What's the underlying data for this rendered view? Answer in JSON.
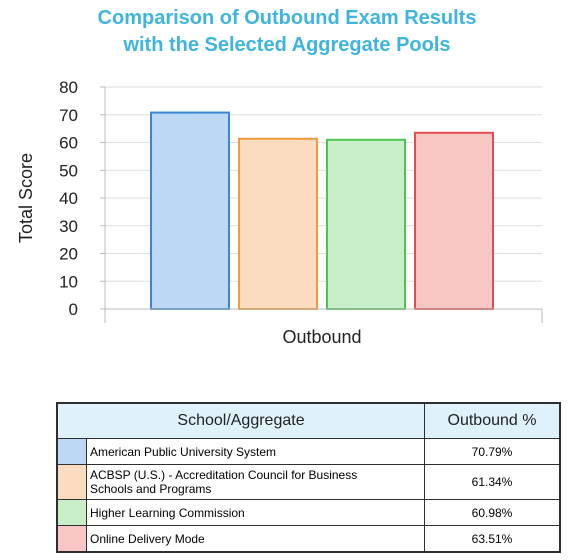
{
  "chart_data": {
    "type": "bar",
    "title_line1": "Comparison of Outbound Exam Results",
    "title_line2": "with the Selected Aggregate Pools",
    "ylabel": "Total Score",
    "xlabel": "Outbound",
    "ylim": [
      0,
      80
    ],
    "yticks": [
      "0",
      "10",
      "20",
      "30",
      "40",
      "50",
      "60",
      "70",
      "80"
    ],
    "grid": true,
    "series": [
      {
        "name": "American Public University System",
        "value": 70.79,
        "fill": "#bcd8f4",
        "stroke": "#3a86d2"
      },
      {
        "name": "ACBSP (U.S.) - Accreditation Council for Business Schools and Programs",
        "value": 61.34,
        "fill": "#fcdcc0",
        "stroke": "#f39a3b"
      },
      {
        "name": "Higher Learning Commission",
        "value": 60.98,
        "fill": "#c8efc8",
        "stroke": "#4fc24f"
      },
      {
        "name": "Online Delivery Mode",
        "value": 63.51,
        "fill": "#f9c6c6",
        "stroke": "#e04f4f"
      }
    ]
  },
  "table": {
    "header_school": "School/Aggregate",
    "header_value": "Outbound %",
    "rows": [
      {
        "label": "American Public University System",
        "value": "70.79%"
      },
      {
        "label_line1": "ACBSP (U.S.) - Accreditation Council for Business",
        "label_line2": "Schools and Programs",
        "value": "61.34%"
      },
      {
        "label": "Higher Learning Commission",
        "value": "60.98%"
      },
      {
        "label": "Online Delivery Mode",
        "value": "63.51%"
      }
    ]
  }
}
